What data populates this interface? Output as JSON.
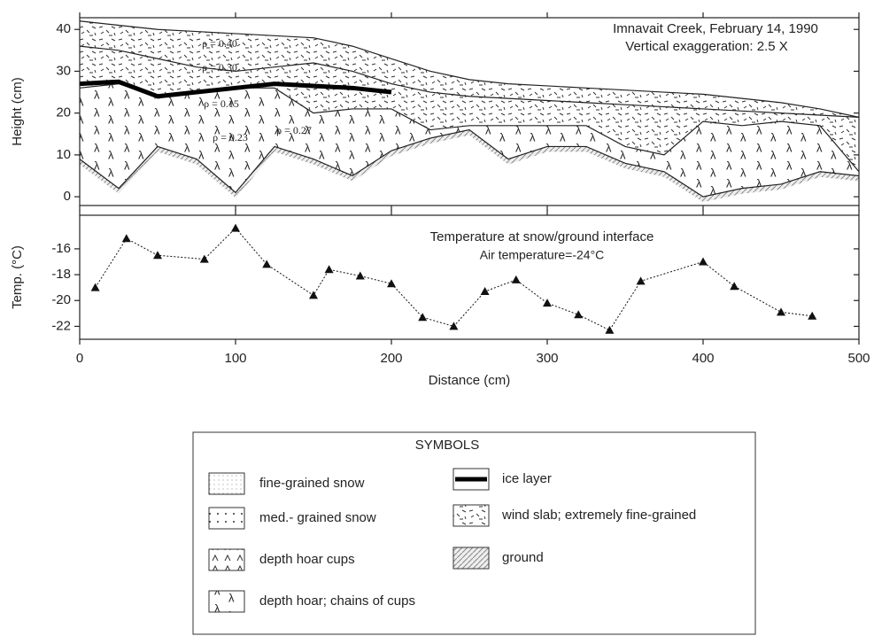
{
  "chart_data": [
    {
      "type": "profile",
      "annotations": [
        "Imnavait Creek, February 14, 1990",
        "Vertical exaggeration: 2.5 X",
        "ρ = 0.40",
        "ρ = 0.30",
        "ρ = 0.15",
        "ρ = 0.23",
        "ρ = 0.27"
      ],
      "y_label": "Height (cm)",
      "xlim": [
        0,
        500
      ],
      "ylim": [
        -2.1,
        42.8
      ],
      "xticks": [
        0,
        100,
        200,
        300,
        400,
        500
      ],
      "yticks": [
        0,
        10,
        20,
        30,
        40
      ],
      "x": [
        0,
        25,
        50,
        75,
        100,
        125,
        150,
        175,
        200,
        225,
        250,
        275,
        300,
        325,
        350,
        375,
        400,
        425,
        450,
        475,
        500
      ],
      "series": [
        {
          "color": "#222",
          "values": [
            42,
            41,
            40,
            39.5,
            39,
            38.5,
            38,
            36,
            33,
            30,
            28,
            27,
            26.5,
            26,
            25.5,
            25,
            24.5,
            23.5,
            22.5,
            21,
            19
          ]
        },
        {
          "color": "#222",
          "values": [
            36,
            35,
            33,
            31,
            30,
            31,
            32,
            30,
            27,
            25,
            24,
            23.5,
            23,
            22.5,
            22,
            21.5,
            21,
            20.5,
            20,
            19.5,
            19
          ]
        },
        {
          "color": "#222",
          "values": [
            26,
            27,
            24,
            25,
            26,
            26,
            20,
            21,
            21,
            16,
            17,
            17,
            17,
            17,
            12,
            10,
            18,
            17,
            18,
            17,
            6
          ]
        },
        {
          "color": "#000",
          "values": [
            27,
            27.5,
            24,
            25,
            26,
            27,
            26.5,
            26,
            25,
            null,
            null,
            null,
            null,
            null,
            null,
            null,
            null,
            null,
            null,
            null,
            null
          ]
        },
        {
          "color": "#222",
          "values": [
            9,
            2,
            12,
            9,
            1,
            12,
            9,
            5,
            11,
            14,
            16,
            9,
            12,
            12,
            8,
            6,
            0,
            2,
            3,
            6,
            5
          ]
        }
      ]
    },
    {
      "type": "line",
      "annotations": [
        "Temperature at snow/ground interface",
        "Air temperature=-24°C"
      ],
      "x_label": "Distance (cm)",
      "y_label": "Temp. (°C)",
      "xlim": [
        0,
        500
      ],
      "ylim": [
        -23,
        -13.4
      ],
      "xticks": [
        0,
        100,
        200,
        300,
        400,
        500
      ],
      "yticks": [
        -22,
        -20,
        -18,
        -16
      ],
      "x": [
        10,
        30,
        50,
        80,
        100,
        120,
        150,
        160,
        180,
        200,
        220,
        240,
        260,
        280,
        300,
        320,
        340,
        360,
        400,
        420,
        450,
        470
      ],
      "series": [
        {
          "color": "#111",
          "values": [
            -19,
            -15.2,
            -16.5,
            -16.8,
            -14.4,
            -17.2,
            -19.6,
            -17.6,
            -18.1,
            -18.7,
            -21.3,
            -22.0,
            -19.3,
            -18.4,
            -20.2,
            -21.1,
            -22.3,
            -18.5,
            -17.0,
            -18.9,
            -20.9,
            -21.2
          ]
        }
      ]
    }
  ],
  "legend": {
    "title": "SYMBOLS",
    "items": [
      "fine-grained snow",
      "med.- grained snow",
      "depth hoar cups",
      "depth hoar; chains of cups",
      "ice layer",
      "wind slab; extremely fine-grained",
      "ground"
    ]
  }
}
